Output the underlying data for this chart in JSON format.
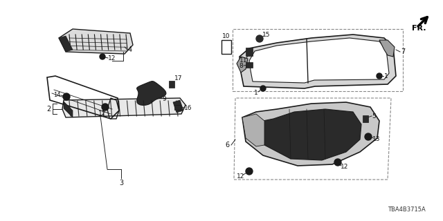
{
  "part_code": "TBA4B3715A",
  "bg_color": "#ffffff",
  "line_color": "#1a1a1a",
  "fill_dark": "#2a2a2a",
  "fill_med": "#555555",
  "fill_light": "#888888",
  "dashed_box_color": "#888888",
  "fr_label": "FR.",
  "fig_w": 6.4,
  "fig_h": 3.2,
  "dpi": 100
}
